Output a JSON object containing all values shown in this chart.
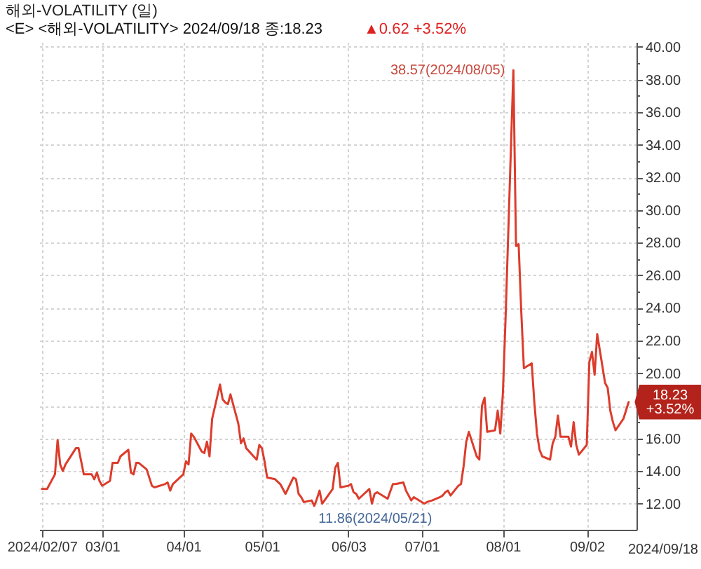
{
  "chart_data": {
    "type": "line",
    "title": "해외-VOLATILITY (일)",
    "subtitle": "<E> <해외-VOLATILITY> 2024/09/18 종:18.23",
    "x": [
      "2024-02-07",
      "2024-02-08",
      "2024-02-09",
      "2024-02-12",
      "2024-02-13",
      "2024-02-14",
      "2024-02-15",
      "2024-02-16",
      "2024-02-20",
      "2024-02-21",
      "2024-02-22",
      "2024-02-23",
      "2024-02-26",
      "2024-02-27",
      "2024-02-28",
      "2024-02-29",
      "2024-03-01",
      "2024-03-04",
      "2024-03-05",
      "2024-03-06",
      "2024-03-07",
      "2024-03-08",
      "2024-03-11",
      "2024-03-12",
      "2024-03-13",
      "2024-03-14",
      "2024-03-15",
      "2024-03-18",
      "2024-03-20",
      "2024-03-21",
      "2024-03-25",
      "2024-03-26",
      "2024-03-27",
      "2024-03-28",
      "2024-04-01",
      "2024-04-02",
      "2024-04-03",
      "2024-04-04",
      "2024-04-05",
      "2024-04-08",
      "2024-04-09",
      "2024-04-10",
      "2024-04-11",
      "2024-04-12",
      "2024-04-15",
      "2024-04-16",
      "2024-04-17",
      "2024-04-18",
      "2024-04-19",
      "2024-04-22",
      "2024-04-23",
      "2024-04-24",
      "2024-04-25",
      "2024-04-29",
      "2024-04-30",
      "2024-05-01",
      "2024-05-02",
      "2024-05-03",
      "2024-05-06",
      "2024-05-08",
      "2024-05-09",
      "2024-05-10",
      "2024-05-13",
      "2024-05-14",
      "2024-05-15",
      "2024-05-16",
      "2024-05-17",
      "2024-05-20",
      "2024-05-21",
      "2024-05-22",
      "2024-05-23",
      "2024-05-24",
      "2024-05-28",
      "2024-05-29",
      "2024-05-30",
      "2024-05-31",
      "2024-06-03",
      "2024-06-04",
      "2024-06-05",
      "2024-06-06",
      "2024-06-07",
      "2024-06-11",
      "2024-06-12",
      "2024-06-13",
      "2024-06-14",
      "2024-06-18",
      "2024-06-20",
      "2024-06-21",
      "2024-06-24",
      "2024-06-25",
      "2024-06-26",
      "2024-06-27",
      "2024-06-28",
      "2024-07-02",
      "2024-07-03",
      "2024-07-05",
      "2024-07-08",
      "2024-07-09",
      "2024-07-10",
      "2024-07-11",
      "2024-07-12",
      "2024-07-15",
      "2024-07-16",
      "2024-07-17",
      "2024-07-18",
      "2024-07-19",
      "2024-07-22",
      "2024-07-23",
      "2024-07-24",
      "2024-07-25",
      "2024-07-26",
      "2024-07-29",
      "2024-07-30",
      "2024-07-31",
      "2024-08-01",
      "2024-08-02",
      "2024-08-05",
      "2024-08-06",
      "2024-08-07",
      "2024-08-08",
      "2024-08-09",
      "2024-08-12",
      "2024-08-13",
      "2024-08-14",
      "2024-08-15",
      "2024-08-16",
      "2024-08-19",
      "2024-08-20",
      "2024-08-21",
      "2024-08-22",
      "2024-08-23",
      "2024-08-26",
      "2024-08-27",
      "2024-08-28",
      "2024-08-29",
      "2024-08-30",
      "2024-09-02",
      "2024-09-03",
      "2024-09-04",
      "2024-09-05",
      "2024-09-06",
      "2024-09-09",
      "2024-09-10",
      "2024-09-11",
      "2024-09-12",
      "2024-09-13",
      "2024-09-16",
      "2024-09-18"
    ],
    "series": [
      {
        "color": "#dc3c2c",
        "values": [
          12.9,
          12.9,
          12.9,
          13.8,
          15.9,
          14.4,
          14.0,
          14.4,
          15.4,
          15.4,
          14.6,
          13.8,
          13.8,
          13.5,
          13.9,
          13.4,
          13.1,
          13.4,
          14.5,
          14.5,
          14.5,
          14.9,
          15.3,
          13.9,
          13.8,
          14.5,
          14.5,
          14.1,
          13.1,
          13.0,
          13.2,
          13.3,
          12.8,
          13.2,
          13.8,
          14.6,
          14.4,
          16.3,
          16.1,
          15.2,
          15.1,
          15.8,
          14.9,
          17.2,
          19.3,
          18.4,
          18.2,
          18.1,
          18.7,
          16.9,
          15.7,
          16.0,
          15.4,
          14.7,
          15.6,
          15.4,
          14.6,
          13.6,
          13.5,
          13.2,
          12.9,
          12.6,
          13.6,
          13.5,
          12.6,
          12.4,
          12.1,
          12.2,
          11.86,
          12.3,
          12.8,
          12.0,
          12.9,
          14.2,
          14.5,
          13.0,
          13.1,
          13.2,
          12.7,
          12.6,
          12.3,
          12.9,
          12.0,
          12.6,
          12.7,
          12.3,
          13.2,
          13.2,
          13.3,
          12.8,
          12.5,
          12.2,
          12.4,
          12.0,
          12.1,
          12.2,
          12.4,
          12.5,
          12.7,
          12.8,
          12.5,
          13.1,
          13.2,
          14.3,
          15.8,
          16.4,
          14.9,
          14.7,
          18.0,
          18.5,
          16.4,
          16.5,
          17.7,
          16.3,
          18.8,
          23.3,
          38.57,
          27.8,
          27.9,
          23.8,
          20.3,
          20.6,
          18.2,
          16.3,
          15.3,
          14.9,
          14.7,
          15.7,
          16.1,
          17.4,
          16.1,
          16.1,
          15.5,
          17.0,
          15.6,
          15.0,
          15.6,
          20.7,
          21.3,
          19.9,
          22.4,
          19.4,
          19.1,
          17.7,
          17.0,
          16.5,
          17.2,
          18.23
        ]
      }
    ],
    "xlim": [
      "2024-02-06",
      "2024-09-21"
    ],
    "xticks": [
      {
        "value": "2024-02-07",
        "label": "2024/02/07"
      },
      {
        "value": "2024-03-01",
        "label": "03/01"
      },
      {
        "value": "2024-04-01",
        "label": "04/01"
      },
      {
        "value": "2024-05-01",
        "label": "05/01"
      },
      {
        "value": "2024-06-03",
        "label": "06/03"
      },
      {
        "value": "2024-07-01",
        "label": "07/01"
      },
      {
        "value": "2024-08-01",
        "label": "08/01"
      },
      {
        "value": "2024-09-02",
        "label": "09/02"
      }
    ],
    "ylim": [
      10.4,
      40.3
    ],
    "yticks": [
      {
        "value": 12,
        "label": "12.00"
      },
      {
        "value": 13,
        "label": null
      },
      {
        "value": 14,
        "label": "14.00"
      },
      {
        "value": 15,
        "label": null
      },
      {
        "value": 16,
        "label": "16.00"
      },
      {
        "value": 17,
        "label": null
      },
      {
        "value": 18,
        "label": null
      },
      {
        "value": 19,
        "label": null
      },
      {
        "value": 20,
        "label": "20.00"
      },
      {
        "value": 21,
        "label": null
      },
      {
        "value": 22,
        "label": "22.00"
      },
      {
        "value": 23,
        "label": null
      },
      {
        "value": 24,
        "label": "24.00"
      },
      {
        "value": 25,
        "label": null
      },
      {
        "value": 26,
        "label": "26.00"
      },
      {
        "value": 27,
        "label": null
      },
      {
        "value": 28,
        "label": "28.00"
      },
      {
        "value": 29,
        "label": null
      },
      {
        "value": 30,
        "label": "30.00"
      },
      {
        "value": 31,
        "label": null
      },
      {
        "value": 32,
        "label": "32.00"
      },
      {
        "value": 33,
        "label": null
      },
      {
        "value": 34,
        "label": "34.00"
      },
      {
        "value": 35,
        "label": null
      },
      {
        "value": 36,
        "label": "36.00"
      },
      {
        "value": 37,
        "label": null
      },
      {
        "value": 38,
        "label": "38.00"
      },
      {
        "value": 39,
        "label": null
      },
      {
        "value": 40,
        "label": "40.00"
      }
    ],
    "grid": true,
    "annotations": [
      {
        "text": "38.57(2024/08/05)",
        "x": "2024-08-05",
        "y": 38.57
      },
      {
        "text": "11.86(2024/05/21)",
        "x": "2024-05-21",
        "y": 11.86
      },
      {
        "text": "18.23\n+3.52%",
        "x": "2024-09-18",
        "y": 18.23
      },
      "▲0.62 +3.52%",
      "2024/09/18"
    ]
  }
}
